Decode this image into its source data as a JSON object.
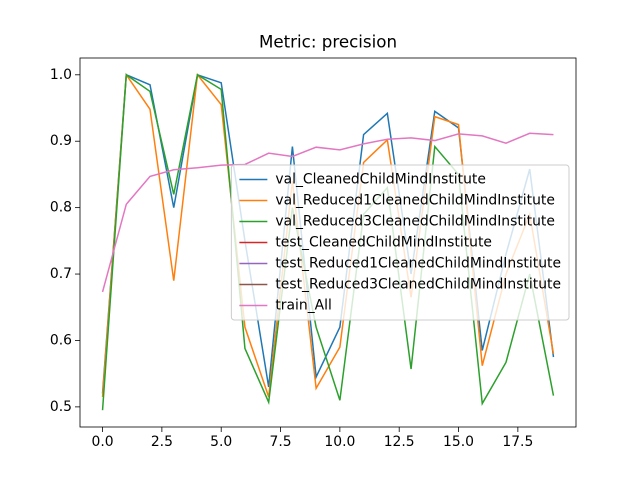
{
  "chart_data": {
    "type": "line",
    "title": "Metric: precision",
    "x": [
      0,
      1,
      2,
      3,
      4,
      5,
      6,
      7,
      8,
      9,
      10,
      11,
      12,
      13,
      14,
      15,
      16,
      17,
      18,
      19
    ],
    "series": [
      {
        "name": "val_CleanedChildMindInstitute",
        "color": "#1f77b4",
        "values": [
          0.52,
          1.0,
          0.985,
          0.8,
          1.0,
          0.988,
          0.75,
          0.53,
          0.892,
          0.545,
          0.62,
          0.91,
          0.942,
          0.7,
          0.945,
          0.92,
          0.585,
          0.73,
          0.858,
          0.575
        ]
      },
      {
        "name": "val_Reduced1CleanedChildMindInstitute",
        "color": "#ff7f0e",
        "values": [
          0.515,
          1.0,
          0.948,
          0.69,
          1.0,
          0.955,
          0.62,
          0.515,
          0.84,
          0.528,
          0.59,
          0.868,
          0.902,
          0.665,
          0.937,
          0.925,
          0.562,
          0.7,
          0.79,
          0.58
        ]
      },
      {
        "name": "val_Reduced3CleanedChildMindInstitute",
        "color": "#2ca02c",
        "values": [
          0.495,
          1.0,
          0.975,
          0.82,
          1.0,
          0.978,
          0.588,
          0.507,
          0.8,
          0.62,
          0.51,
          0.79,
          0.83,
          0.557,
          0.892,
          0.85,
          0.505,
          0.567,
          0.7,
          0.517
        ]
      },
      {
        "name": "test_CleanedChildMindInstitute",
        "color": "#d62728",
        "values": [
          null,
          null,
          null,
          null,
          null,
          null,
          null,
          null,
          null,
          null,
          null,
          null,
          null,
          null,
          null,
          null,
          null,
          null,
          null,
          null
        ]
      },
      {
        "name": "test_Reduced1CleanedChildMindInstitute",
        "color": "#9467bd",
        "values": [
          null,
          null,
          null,
          null,
          null,
          null,
          null,
          null,
          null,
          null,
          null,
          null,
          null,
          null,
          null,
          null,
          null,
          null,
          null,
          null
        ]
      },
      {
        "name": "test_Reduced3CleanedChildMindInstitute",
        "color": "#8c564b",
        "values": [
          null,
          null,
          null,
          null,
          null,
          null,
          null,
          null,
          null,
          null,
          null,
          null,
          null,
          null,
          null,
          null,
          null,
          null,
          null,
          null
        ]
      },
      {
        "name": "train_All",
        "color": "#e377c2",
        "values": [
          0.673,
          0.805,
          0.847,
          0.857,
          0.86,
          0.864,
          0.865,
          0.882,
          0.877,
          0.891,
          0.887,
          0.896,
          0.903,
          0.905,
          0.901,
          0.911,
          0.908,
          0.897,
          0.912,
          0.91
        ]
      }
    ],
    "xlim": [
      -0.95,
      19.95
    ],
    "xticks": [
      {
        "value": 0,
        "label": "0.0"
      },
      2.5,
      {
        "value": 5,
        "label": "5.0"
      },
      7.5,
      {
        "value": 10,
        "label": "10.0"
      },
      12.5,
      {
        "value": 15,
        "label": "15.0"
      },
      17.5
    ],
    "ylim": [
      0.4697,
      1.0253
    ],
    "yticks": [
      0.5,
      0.6,
      0.7,
      0.8,
      0.9,
      {
        "value": 1,
        "label": "1.0"
      }
    ],
    "legend": "center right"
  }
}
